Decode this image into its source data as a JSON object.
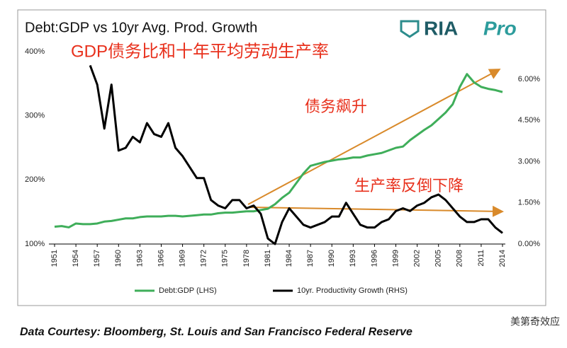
{
  "chart_data": {
    "type": "line",
    "title": "Debt:GDP vs 10yr Avg. Prod. Growth",
    "annotations": [
      "GDP债务比和十年平均劳动生产率",
      "债务飙升",
      "生产率反倒下降"
    ],
    "x": [
      1951,
      1952,
      1953,
      1954,
      1955,
      1956,
      1957,
      1958,
      1959,
      1960,
      1961,
      1962,
      1963,
      1964,
      1965,
      1966,
      1967,
      1968,
      1969,
      1970,
      1971,
      1972,
      1973,
      1974,
      1975,
      1976,
      1977,
      1978,
      1979,
      1980,
      1981,
      1982,
      1983,
      1984,
      1985,
      1986,
      1987,
      1988,
      1989,
      1990,
      1991,
      1992,
      1993,
      1994,
      1995,
      1996,
      1997,
      1998,
      1999,
      2000,
      2001,
      2002,
      2003,
      2004,
      2005,
      2006,
      2007,
      2008,
      2009,
      2010,
      2011,
      2012,
      2013,
      2014
    ],
    "xlim": [
      1951,
      2014
    ],
    "xticks": [
      1951,
      1954,
      1957,
      1960,
      1963,
      1966,
      1969,
      1972,
      1975,
      1978,
      1981,
      1984,
      1987,
      1990,
      1993,
      1996,
      1999,
      2002,
      2005,
      2008,
      2011,
      2014
    ],
    "ylim": [
      100,
      400
    ],
    "yticks": [
      {
        "value": 100,
        "label": "100%"
      },
      {
        "value": 200,
        "label": "200%"
      },
      {
        "value": 300,
        "label": "300%"
      },
      {
        "value": 400,
        "label": "400%"
      }
    ],
    "y2lim": [
      0,
      7
    ],
    "y2ticks": [
      {
        "value": 0,
        "label": "0.00%"
      },
      {
        "value": 1.5,
        "label": "1.50%"
      },
      {
        "value": 3,
        "label": "3.00%"
      },
      {
        "value": 4.5,
        "label": "4.50%"
      },
      {
        "value": 6,
        "label": "6.00%"
      }
    ],
    "legend": "bottom",
    "series": [
      {
        "name": "Debt:GDP (LHS)",
        "color": "#3fae5a",
        "values": [
          127,
          128,
          126,
          132,
          131,
          131,
          132,
          135,
          136,
          138,
          140,
          140,
          142,
          143,
          143,
          143,
          144,
          144,
          143,
          144,
          145,
          146,
          146,
          148,
          149,
          149,
          150,
          151,
          151,
          153,
          155,
          162,
          172,
          180,
          195,
          210,
          222,
          225,
          228,
          230,
          232,
          233,
          235,
          235,
          238,
          240,
          242,
          246,
          250,
          252,
          262,
          270,
          278,
          285,
          295,
          305,
          318,
          345,
          365,
          352,
          345,
          342,
          340,
          337
        ]
      },
      {
        "name": "10yr. Productivity Growth (RHS)",
        "color": "#000000",
        "axis": "y2",
        "values": [
          null,
          null,
          null,
          null,
          null,
          6.5,
          5.8,
          4.2,
          5.8,
          3.4,
          3.5,
          3.9,
          3.7,
          4.4,
          4.0,
          3.9,
          4.4,
          3.5,
          3.2,
          2.8,
          2.4,
          2.4,
          1.6,
          1.4,
          1.3,
          1.6,
          1.6,
          1.3,
          1.4,
          1.1,
          0.2,
          0.0,
          0.8,
          1.3,
          1.0,
          0.7,
          0.6,
          0.7,
          0.8,
          1.0,
          1.0,
          1.5,
          1.1,
          0.7,
          0.6,
          0.6,
          0.8,
          0.9,
          1.2,
          1.3,
          1.2,
          1.4,
          1.5,
          1.7,
          1.8,
          1.6,
          1.3,
          1.0,
          0.8,
          0.8,
          0.9,
          0.9,
          0.6,
          0.4
        ]
      }
    ]
  },
  "logo": {
    "name": "RIA",
    "suffix": "Pro"
  },
  "source": "Data Courtesy: Bloomberg, St. Louis and San Francisco Federal Reserve",
  "watermark": "美第奇效应"
}
